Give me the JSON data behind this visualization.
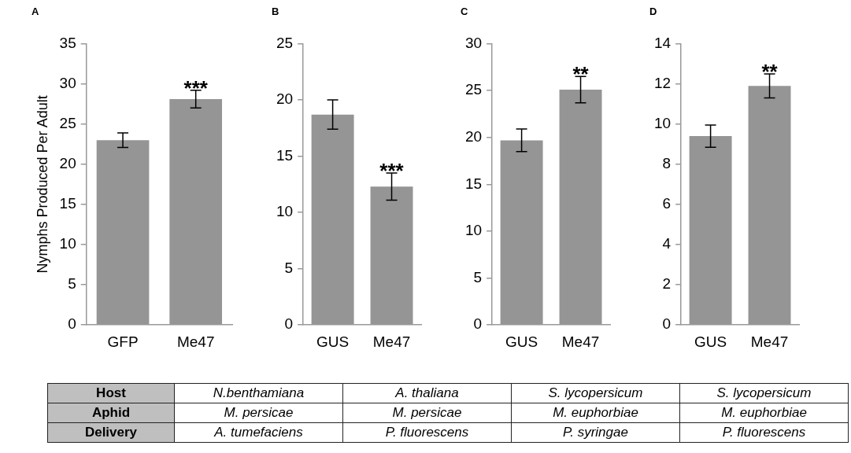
{
  "chart_data": [
    {
      "type": "bar",
      "title": "A",
      "ylabel": "Nymphs Produced Per Adult",
      "categories": [
        "GFP",
        "Me47"
      ],
      "values": [
        23,
        28.1
      ],
      "errors": [
        0.9,
        1.1
      ],
      "color": "#959595",
      "ylim": [
        0,
        35
      ],
      "yticks": [
        0,
        5,
        10,
        15,
        20,
        25,
        30,
        35
      ],
      "grid": false,
      "annotations": [
        {
          "text": "***",
          "x": "Me47",
          "y": 29.2
        }
      ]
    },
    {
      "type": "bar",
      "title": "B",
      "categories": [
        "GUS",
        "Me47"
      ],
      "values": [
        18.7,
        12.3
      ],
      "errors": [
        1.3,
        1.2
      ],
      "color": "#959595",
      "ylim": [
        0,
        25
      ],
      "yticks": [
        0,
        5,
        10,
        15,
        20,
        25
      ],
      "grid": false,
      "annotations": [
        {
          "text": "***",
          "x": "Me47",
          "y": 13.5
        }
      ]
    },
    {
      "type": "bar",
      "title": "C",
      "categories": [
        "GUS",
        "Me47"
      ],
      "values": [
        19.7,
        25.1
      ],
      "errors": [
        1.2,
        1.4
      ],
      "color": "#959595",
      "ylim": [
        0,
        30
      ],
      "yticks": [
        0,
        5,
        10,
        15,
        20,
        25,
        30
      ],
      "grid": false,
      "annotations": [
        {
          "text": "**",
          "x": "Me47",
          "y": 26.5
        }
      ]
    },
    {
      "type": "bar",
      "title": "D",
      "categories": [
        "GUS",
        "Me47"
      ],
      "values": [
        9.4,
        11.9
      ],
      "errors": [
        0.55,
        0.6
      ],
      "color": "#959595",
      "ylim": [
        0,
        14
      ],
      "yticks": [
        0,
        2,
        4,
        6,
        8,
        10,
        12,
        14
      ],
      "grid": false,
      "annotations": [
        {
          "text": "**",
          "x": "Me47",
          "y": 12.5
        }
      ]
    },
    {
      "type": "other",
      "annotations": [
        "Host",
        "N.benthamiana",
        "A. thaliana",
        "S. lycopersicum",
        "S. lycopersicum",
        "Aphid",
        "M. persicae",
        "M. persicae",
        "M. euphorbiae",
        "M. euphorbiae",
        "Delivery",
        "A. tumefaciens",
        "P. fluorescens",
        "P. syringae",
        "P. fluorescens"
      ]
    }
  ]
}
